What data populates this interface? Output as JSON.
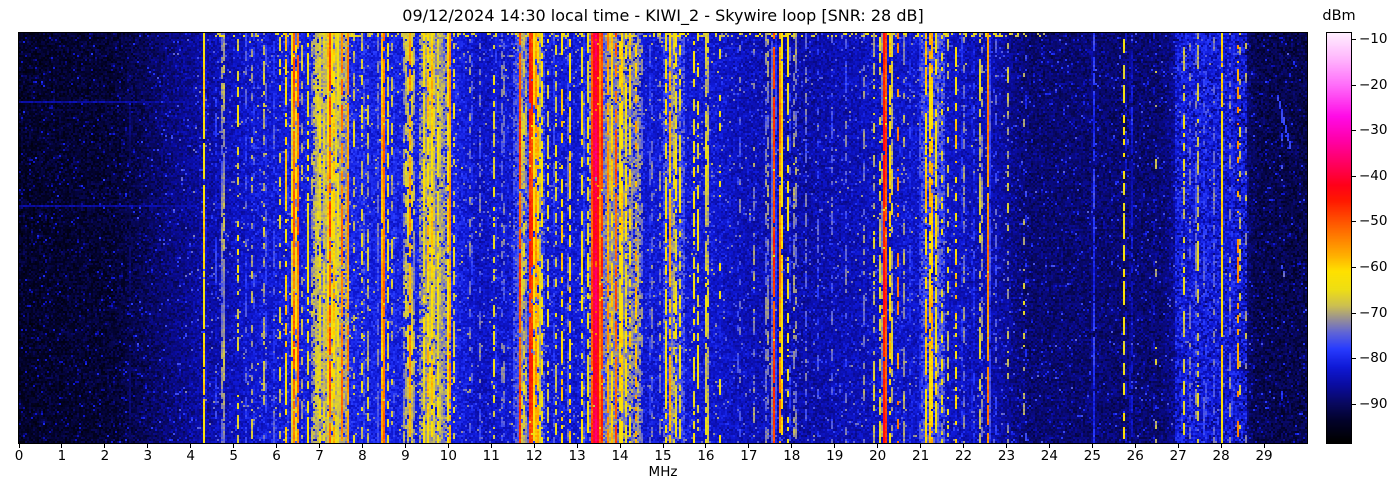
{
  "title": "09/12/2024 14:30 local time - KIWI_2 - Skywire loop [SNR: 28 dB]",
  "chart_data": {
    "type": "heatmap",
    "title": "09/12/2024 14:30 local time - KIWI_2 - Skywire loop [SNR: 28 dB]",
    "xlabel": "MHz",
    "x_range_mhz": [
      0,
      30
    ],
    "x_ticks": [
      0,
      1,
      2,
      3,
      4,
      5,
      6,
      7,
      8,
      9,
      10,
      11,
      12,
      13,
      14,
      15,
      16,
      17,
      18,
      19,
      20,
      21,
      22,
      23,
      24,
      25,
      26,
      27,
      28,
      29
    ],
    "colorbar": {
      "label": "dBm",
      "tick_values": [
        -10,
        -20,
        -30,
        -40,
        -50,
        -60,
        -70,
        -80,
        -90
      ],
      "tick_labels": [
        "−10",
        "−20",
        "−30",
        "−40",
        "−50",
        "−60",
        "−70",
        "−80",
        "−90"
      ],
      "value_top_dbm": -8.7,
      "value_bottom_dbm": -98.6
    },
    "colormap_stops": [
      [
        -98.5,
        0,
        0,
        0
      ],
      [
        -94,
        2,
        2,
        40
      ],
      [
        -90,
        8,
        8,
        95
      ],
      [
        -86,
        10,
        12,
        160
      ],
      [
        -82,
        15,
        25,
        215
      ],
      [
        -78,
        40,
        60,
        255
      ],
      [
        -74.5,
        95,
        100,
        215
      ],
      [
        -71.5,
        150,
        143,
        150
      ],
      [
        -68.5,
        205,
        192,
        80
      ],
      [
        -65,
        238,
        222,
        20
      ],
      [
        -61,
        255,
        225,
        0
      ],
      [
        -57.5,
        255,
        175,
        0
      ],
      [
        -53,
        255,
        120,
        0
      ],
      [
        -49,
        255,
        70,
        0
      ],
      [
        -45.5,
        255,
        25,
        0
      ],
      [
        -42,
        255,
        0,
        25
      ],
      [
        -38,
        255,
        0,
        85
      ],
      [
        -32,
        255,
        0,
        170
      ],
      [
        -27,
        255,
        10,
        230
      ],
      [
        -20,
        255,
        110,
        250
      ],
      [
        -14,
        255,
        185,
        253
      ],
      [
        -8.5,
        255,
        240,
        255
      ]
    ],
    "noise_floor_dbm": [
      [
        0,
        -96
      ],
      [
        2.2,
        -95
      ],
      [
        3.2,
        -91.5
      ],
      [
        4.2,
        -88
      ],
      [
        5.0,
        -86
      ],
      [
        5.6,
        -84.5
      ],
      [
        6.8,
        -83.5
      ],
      [
        7.4,
        -82.5
      ],
      [
        8.2,
        -83
      ],
      [
        10.2,
        -83
      ],
      [
        10.7,
        -85.5
      ],
      [
        11.4,
        -84.5
      ],
      [
        13.0,
        -84
      ],
      [
        16.2,
        -84.5
      ],
      [
        16.8,
        -86
      ],
      [
        18.3,
        -87.5
      ],
      [
        19.3,
        -86.5
      ],
      [
        20.6,
        -85
      ],
      [
        21.8,
        -85.5
      ],
      [
        22.8,
        -87.5
      ],
      [
        23.5,
        -91
      ],
      [
        26.6,
        -91
      ],
      [
        27.1,
        -87.5
      ],
      [
        28.3,
        -87.5
      ],
      [
        28.8,
        -93
      ],
      [
        30,
        -93.5
      ]
    ],
    "elevated_zones": [
      [
        6.85,
        7.6,
        -72
      ],
      [
        9.33,
        9.97,
        -73
      ],
      [
        11.55,
        12.2,
        -78
      ],
      [
        13.28,
        14.4,
        -74
      ],
      [
        15.0,
        15.45,
        -78
      ],
      [
        21.03,
        21.5,
        -78
      ],
      [
        26.95,
        28.55,
        -83
      ]
    ],
    "signal_bands": [
      [
        2.55,
        0.02,
        -87,
        0.85
      ],
      [
        4.29,
        0.026,
        -59,
        0.93
      ],
      [
        4.55,
        0.02,
        -75,
        0.5
      ],
      [
        4.73,
        0.02,
        -63,
        0.8
      ],
      [
        5.07,
        0.02,
        -63,
        0.5
      ],
      [
        5.25,
        0.02,
        -72,
        0.45
      ],
      [
        5.42,
        0.02,
        -65,
        0.35
      ],
      [
        5.7,
        0.02,
        -64,
        0.5
      ],
      [
        5.9,
        0.02,
        -72,
        0.55
      ],
      [
        6.05,
        0.02,
        -65,
        0.45
      ],
      [
        6.2,
        0.03,
        -58,
        0.7
      ],
      [
        6.37,
        0.026,
        -48,
        0.95
      ],
      [
        6.42,
        0.02,
        -61,
        0.8
      ],
      [
        6.47,
        0.025,
        -50,
        0.9
      ],
      [
        6.58,
        0.02,
        -66,
        0.4
      ],
      [
        6.7,
        0.02,
        -61,
        0.8
      ],
      [
        6.8,
        0.02,
        -69,
        0.5
      ],
      [
        6.92,
        0.04,
        -63,
        0.8
      ],
      [
        7.0,
        0.03,
        -61,
        0.7
      ],
      [
        7.08,
        0.04,
        -65,
        0.8
      ],
      [
        7.16,
        0.03,
        -56,
        0.8
      ],
      [
        7.21,
        0.02,
        -47,
        0.9
      ],
      [
        7.27,
        0.04,
        -62,
        0.85
      ],
      [
        7.33,
        0.03,
        -55,
        0.8
      ],
      [
        7.41,
        0.04,
        -63,
        0.8
      ],
      [
        7.49,
        0.025,
        -50,
        0.85
      ],
      [
        7.63,
        0.025,
        -52,
        0.9
      ],
      [
        7.78,
        0.02,
        -66,
        0.4
      ],
      [
        7.98,
        0.03,
        -63,
        0.55
      ],
      [
        8.1,
        0.02,
        -67,
        0.5
      ],
      [
        8.33,
        0.02,
        -72,
        0.55
      ],
      [
        8.46,
        0.03,
        -47,
        0.97
      ],
      [
        8.56,
        0.02,
        -61,
        0.6
      ],
      [
        8.68,
        0.02,
        -64,
        0.45
      ],
      [
        8.97,
        0.03,
        -62,
        0.6
      ],
      [
        9.07,
        0.02,
        -52,
        0.75
      ],
      [
        9.15,
        0.03,
        -61,
        0.7
      ],
      [
        9.42,
        0.04,
        -61,
        0.85
      ],
      [
        9.5,
        0.03,
        -58,
        0.8
      ],
      [
        9.58,
        0.03,
        -55,
        0.85
      ],
      [
        9.66,
        0.03,
        -62,
        0.8
      ],
      [
        9.75,
        0.04,
        -61,
        0.85
      ],
      [
        9.85,
        0.03,
        -65,
        0.7
      ],
      [
        10.0,
        0.035,
        -52,
        0.92
      ],
      [
        10.12,
        0.02,
        -63,
        0.5
      ],
      [
        10.5,
        0.02,
        -66,
        0.35
      ],
      [
        10.72,
        0.02,
        -72,
        0.4
      ],
      [
        11.05,
        0.03,
        -63,
        0.5
      ],
      [
        11.25,
        0.02,
        -65,
        0.4
      ],
      [
        11.65,
        0.03,
        -47,
        0.9
      ],
      [
        11.76,
        0.02,
        -60,
        0.7
      ],
      [
        11.9,
        0.04,
        -42,
        0.95
      ],
      [
        12.0,
        0.025,
        -50,
        0.85
      ],
      [
        12.08,
        0.03,
        -55,
        0.8
      ],
      [
        12.16,
        0.02,
        -61,
        0.6
      ],
      [
        12.3,
        0.02,
        -64,
        0.5
      ],
      [
        12.47,
        0.025,
        -62,
        0.55
      ],
      [
        12.62,
        0.02,
        -58,
        0.5
      ],
      [
        12.8,
        0.025,
        -57,
        0.6
      ],
      [
        13.1,
        0.03,
        -60,
        0.7
      ],
      [
        13.22,
        0.025,
        -61,
        0.65
      ],
      [
        13.33,
        0.03,
        -52,
        0.85
      ],
      [
        13.41,
        0.08,
        -36,
        0.98
      ],
      [
        13.55,
        0.03,
        -45,
        0.92
      ],
      [
        13.7,
        0.035,
        -54,
        0.88
      ],
      [
        13.8,
        0.03,
        -57,
        0.85
      ],
      [
        13.88,
        0.025,
        -49,
        0.85
      ],
      [
        14.0,
        0.035,
        -55,
        0.85
      ],
      [
        14.1,
        0.03,
        -59,
        0.75
      ],
      [
        14.22,
        0.03,
        -58,
        0.6
      ],
      [
        14.36,
        0.028,
        -54,
        0.55
      ],
      [
        14.5,
        0.02,
        -69,
        0.5
      ],
      [
        14.7,
        0.02,
        -67,
        0.4
      ],
      [
        14.9,
        0.02,
        -70,
        0.45
      ],
      [
        15.05,
        0.03,
        -61,
        0.7
      ],
      [
        15.15,
        0.03,
        -55,
        0.8
      ],
      [
        15.26,
        0.03,
        -58,
        0.75
      ],
      [
        15.38,
        0.025,
        -62,
        0.6
      ],
      [
        15.7,
        0.03,
        -62,
        0.6
      ],
      [
        15.8,
        0.025,
        -62,
        0.55
      ],
      [
        16.0,
        0.028,
        -59,
        0.85
      ],
      [
        16.3,
        0.02,
        -62,
        0.25
      ],
      [
        16.75,
        0.02,
        -67,
        0.3
      ],
      [
        17.1,
        0.02,
        -70,
        0.35
      ],
      [
        17.4,
        0.025,
        -64,
        0.5
      ],
      [
        17.56,
        0.025,
        -46,
        0.95
      ],
      [
        17.72,
        0.025,
        -49,
        0.93
      ],
      [
        17.9,
        0.025,
        -60,
        0.6
      ],
      [
        18.05,
        0.022,
        -63,
        0.5
      ],
      [
        18.3,
        0.02,
        -72,
        0.45
      ],
      [
        18.6,
        0.02,
        -73,
        0.4
      ],
      [
        18.9,
        0.02,
        -71,
        0.4
      ],
      [
        19.25,
        0.02,
        -72,
        0.35
      ],
      [
        19.65,
        0.02,
        -70,
        0.4
      ],
      [
        19.9,
        0.025,
        -66,
        0.5
      ],
      [
        20.05,
        0.025,
        -60,
        0.7
      ],
      [
        20.14,
        0.035,
        -40,
        0.97
      ],
      [
        20.28,
        0.022,
        -55,
        0.7
      ],
      [
        20.45,
        0.02,
        -52,
        0.3
      ],
      [
        20.6,
        0.02,
        -68,
        0.5
      ],
      [
        20.75,
        0.02,
        -72,
        0.5
      ],
      [
        20.95,
        0.02,
        -74,
        0.6
      ],
      [
        21.1,
        0.03,
        -58,
        0.75
      ],
      [
        21.22,
        0.035,
        -53,
        0.85
      ],
      [
        21.35,
        0.025,
        -58,
        0.7
      ],
      [
        21.48,
        0.02,
        -63,
        0.4
      ],
      [
        21.62,
        0.02,
        -65,
        0.35
      ],
      [
        21.8,
        0.022,
        -59,
        0.4
      ],
      [
        21.97,
        0.02,
        -67,
        0.45
      ],
      [
        22.2,
        0.02,
        -72,
        0.5
      ],
      [
        22.38,
        0.025,
        -61,
        0.5
      ],
      [
        22.55,
        0.024,
        -52,
        0.96
      ],
      [
        22.72,
        0.02,
        -72,
        0.5
      ],
      [
        23.02,
        0.02,
        -67,
        0.3
      ],
      [
        23.4,
        0.02,
        -64,
        0.18
      ],
      [
        25.0,
        0.016,
        -74,
        0.92
      ],
      [
        25.72,
        0.026,
        -61,
        0.5
      ],
      [
        25.88,
        0.02,
        -76,
        0.75
      ],
      [
        26.45,
        0.02,
        -65,
        0.22
      ],
      [
        27.1,
        0.025,
        -63,
        0.45
      ],
      [
        27.25,
        0.02,
        -72,
        0.5
      ],
      [
        27.42,
        0.025,
        -62,
        0.5
      ],
      [
        27.6,
        0.02,
        -69,
        0.5
      ],
      [
        27.8,
        0.02,
        -71,
        0.5
      ],
      [
        28.0,
        0.024,
        -59,
        0.94
      ],
      [
        28.2,
        0.02,
        -67,
        0.4
      ],
      [
        28.38,
        0.03,
        -52,
        0.45
      ],
      [
        28.55,
        0.02,
        -69,
        0.3
      ],
      [
        29.42,
        0.02,
        -66,
        0.05
      ]
    ],
    "features": {
      "horizontal_streaks": [
        {
          "y_frac": 0.165,
          "f_max_mhz": 9.5,
          "level_dbm": -88
        },
        {
          "y_frac": 0.42,
          "f_max_mhz": 8.0,
          "level_dbm": -88
        }
      ],
      "diagonal_streak": {
        "f0_mhz": 29.3,
        "f1_mhz": 29.6,
        "y0_frac": 0.15,
        "y1_frac": 0.28,
        "level_dbm": -79
      }
    }
  }
}
